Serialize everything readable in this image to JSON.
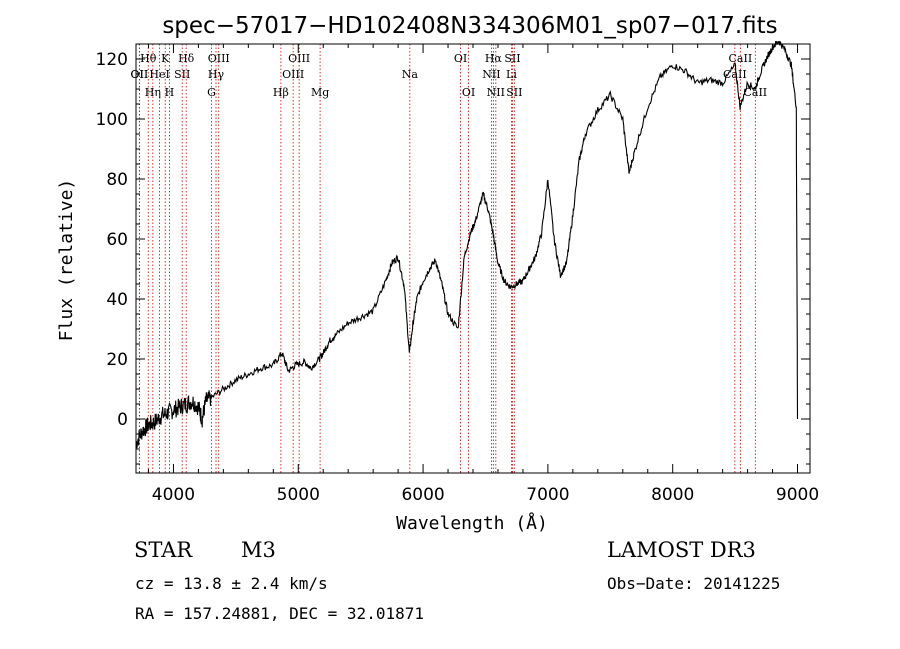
{
  "chart_data": {
    "type": "line",
    "title": "spec−57017−HD102408N334306M01_sp07−017.fits",
    "xlabel": "Wavelength (Å)",
    "ylabel": "Flux (relative)",
    "xlim": [
      3700,
      9100
    ],
    "ylim": [
      -18,
      125
    ],
    "x_ticks": [
      4000,
      5000,
      6000,
      7000,
      8000,
      9000
    ],
    "y_ticks": [
      0,
      20,
      40,
      60,
      80,
      100,
      120
    ],
    "grid": false,
    "line_color": "#000000",
    "marker_color": "#cc0000",
    "spectrum": {
      "x": [
        3700,
        3750,
        3800,
        3850,
        3900,
        3950,
        4000,
        4050,
        4100,
        4150,
        4200,
        4230,
        4260,
        4300,
        4400,
        4500,
        4600,
        4700,
        4800,
        4870,
        4920,
        4980,
        5050,
        5100,
        5170,
        5200,
        5250,
        5300,
        5400,
        5500,
        5600,
        5700,
        5750,
        5800,
        5850,
        5890,
        5920,
        5950,
        6000,
        6050,
        6100,
        6150,
        6200,
        6280,
        6330,
        6380,
        6420,
        6480,
        6520,
        6560,
        6600,
        6650,
        6700,
        6750,
        6800,
        6850,
        6900,
        6950,
        7000,
        7050,
        7100,
        7150,
        7200,
        7250,
        7300,
        7400,
        7500,
        7600,
        7650,
        7700,
        7800,
        7900,
        8000,
        8100,
        8200,
        8300,
        8400,
        8500,
        8540,
        8600,
        8660,
        8700,
        8750,
        8800,
        8850,
        8900,
        8950,
        8990,
        9000
      ],
      "y": [
        -8,
        -4,
        -2,
        -1,
        1,
        2,
        3,
        4,
        5,
        6,
        4,
        0,
        6,
        7,
        10,
        13,
        15,
        17,
        18,
        22,
        16,
        18,
        19,
        17,
        20,
        22,
        26,
        28,
        32,
        34,
        36,
        46,
        52,
        54,
        44,
        22,
        32,
        40,
        46,
        50,
        53,
        45,
        35,
        30,
        54,
        62,
        66,
        75,
        70,
        62,
        52,
        46,
        44,
        45,
        46,
        50,
        54,
        62,
        80,
        60,
        48,
        52,
        68,
        86,
        95,
        103,
        108,
        100,
        82,
        90,
        104,
        114,
        118,
        116,
        112,
        113,
        112,
        118,
        104,
        112,
        110,
        115,
        120,
        124,
        126,
        123,
        118,
        104,
        0
      ]
    },
    "lines": [
      {
        "name": "OⅠI",
        "x": 3727,
        "row": 2
      },
      {
        "name": "Hθ",
        "x": 3798,
        "row": 1
      },
      {
        "name": "OII",
        "x": 3727,
        "row": 2
      },
      {
        "name": "Hη",
        "x": 3835,
        "row": 3
      },
      {
        "name": "HeI",
        "x": 3889,
        "row": 2
      },
      {
        "name": "K",
        "x": 3934,
        "row": 1
      },
      {
        "name": "H",
        "x": 3968,
        "row": 3
      },
      {
        "name": "SII",
        "x": 4070,
        "row": 2
      },
      {
        "name": "Hδ",
        "x": 4102,
        "row": 1
      },
      {
        "name": "G",
        "x": 4305,
        "row": 3
      },
      {
        "name": "Hγ",
        "x": 4341,
        "row": 2
      },
      {
        "name": "OIII",
        "x": 4363,
        "row": 1
      },
      {
        "name": "Hβ",
        "x": 4861,
        "row": 3
      },
      {
        "name": "OIII",
        "x": 4959,
        "row": 2
      },
      {
        "name": "OIII",
        "x": 5007,
        "row": 1
      },
      {
        "name": "Mg",
        "x": 5175,
        "row": 3
      },
      {
        "name": "Na",
        "x": 5894,
        "row": 2
      },
      {
        "name": "OI",
        "x": 6300,
        "row": 1
      },
      {
        "name": "OI",
        "x": 6364,
        "row": 3
      },
      {
        "name": "NII",
        "x": 6548,
        "row": 2
      },
      {
        "name": "Hα",
        "x": 6563,
        "row": 1
      },
      {
        "name": "NII",
        "x": 6583,
        "row": 3
      },
      {
        "name": "SII",
        "x": 6716,
        "row": 1
      },
      {
        "name": "Li",
        "x": 6708,
        "row": 2
      },
      {
        "name": "SII",
        "x": 6731,
        "row": 3
      },
      {
        "name": "CaII",
        "x": 8498,
        "row": 2
      },
      {
        "name": "CaII",
        "x": 8542,
        "row": 1
      },
      {
        "name": "CaII",
        "x": 8662,
        "row": 3
      }
    ]
  },
  "footer": {
    "object_class": "STAR",
    "subclass": "M3",
    "survey": "LAMOST DR3",
    "cz": "cz = 13.8 ± 2.4 km/s",
    "obs_date": "Obs−Date: 20141225",
    "radec": "RA = 157.24881, DEC =  32.01871"
  }
}
